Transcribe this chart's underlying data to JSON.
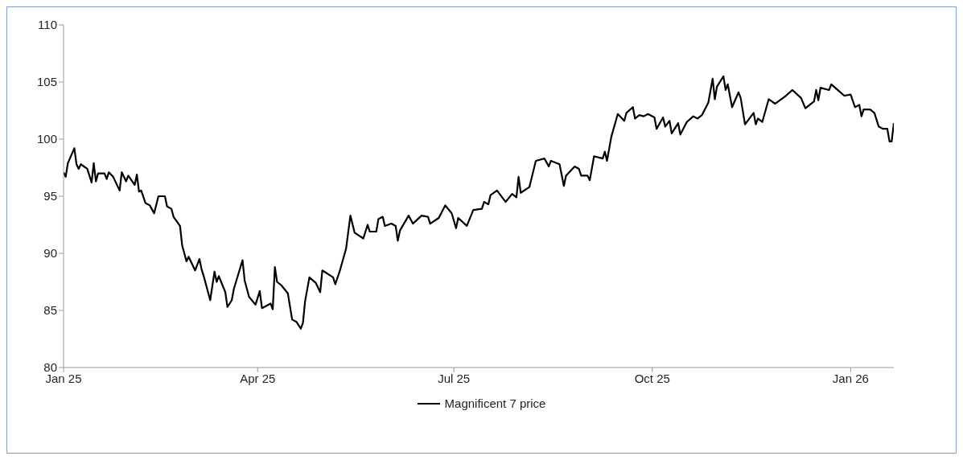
{
  "chart_data": {
    "type": "line",
    "x": [
      "2025-01-01",
      "2025-01-02",
      "2025-01-03",
      "2025-01-06",
      "2025-01-07",
      "2025-01-08",
      "2025-01-09",
      "2025-01-12",
      "2025-01-14",
      "2025-01-15",
      "2025-01-16",
      "2025-01-17",
      "2025-01-20",
      "2025-01-21",
      "2025-01-22",
      "2025-01-24",
      "2025-01-27",
      "2025-01-28",
      "2025-01-30",
      "2025-01-31",
      "2025-02-03",
      "2025-02-04",
      "2025-02-05",
      "2025-02-06",
      "2025-02-08",
      "2025-02-10",
      "2025-02-12",
      "2025-02-14",
      "2025-02-17",
      "2025-02-18",
      "2025-02-20",
      "2025-02-21",
      "2025-02-24",
      "2025-02-25",
      "2025-02-27",
      "2025-02-28",
      "2025-03-03",
      "2025-03-05",
      "2025-03-06",
      "2025-03-07",
      "2025-03-10",
      "2025-03-12",
      "2025-03-13",
      "2025-03-14",
      "2025-03-17",
      "2025-03-18",
      "2025-03-20",
      "2025-03-21",
      "2025-03-25",
      "2025-03-26",
      "2025-03-28",
      "2025-03-31",
      "2025-04-02",
      "2025-04-03",
      "2025-04-07",
      "2025-04-08",
      "2025-04-09",
      "2025-04-10",
      "2025-04-12",
      "2025-04-15",
      "2025-04-17",
      "2025-04-19",
      "2025-04-21",
      "2025-04-22",
      "2025-04-23",
      "2025-04-25",
      "2025-04-28",
      "2025-04-30",
      "2025-05-01",
      "2025-05-06",
      "2025-05-07",
      "2025-05-09",
      "2025-05-12",
      "2025-05-14",
      "2025-05-16",
      "2025-05-20",
      "2025-05-22",
      "2025-05-23",
      "2025-05-26",
      "2025-05-27",
      "2025-05-29",
      "2025-05-30",
      "2025-06-02",
      "2025-06-04",
      "2025-06-05",
      "2025-06-06",
      "2025-06-10",
      "2025-06-12",
      "2025-06-16",
      "2025-06-19",
      "2025-06-20",
      "2025-06-24",
      "2025-06-27",
      "2025-06-30",
      "2025-07-02",
      "2025-07-03",
      "2025-07-07",
      "2025-07-10",
      "2025-07-14",
      "2025-07-15",
      "2025-07-17",
      "2025-07-18",
      "2025-07-21",
      "2025-07-25",
      "2025-07-28",
      "2025-07-30",
      "2025-07-31",
      "2025-08-01",
      "2025-08-05",
      "2025-08-08",
      "2025-08-12",
      "2025-08-14",
      "2025-08-15",
      "2025-08-19",
      "2025-08-21",
      "2025-08-22",
      "2025-08-26",
      "2025-08-28",
      "2025-08-29",
      "2025-09-01",
      "2025-09-02",
      "2025-09-04",
      "2025-09-08",
      "2025-09-09",
      "2025-09-10",
      "2025-09-12",
      "2025-09-15",
      "2025-09-18",
      "2025-09-19",
      "2025-09-22",
      "2025-09-23",
      "2025-09-25",
      "2025-09-27",
      "2025-09-29",
      "2025-10-02",
      "2025-10-03",
      "2025-10-06",
      "2025-10-07",
      "2025-10-09",
      "2025-10-10",
      "2025-10-13",
      "2025-10-14",
      "2025-10-17",
      "2025-10-20",
      "2025-10-22",
      "2025-10-24",
      "2025-10-27",
      "2025-10-29",
      "2025-10-30",
      "2025-10-31",
      "2025-11-03",
      "2025-11-04",
      "2025-11-05",
      "2025-11-07",
      "2025-11-10",
      "2025-11-11",
      "2025-11-13",
      "2025-11-17",
      "2025-11-18",
      "2025-11-19",
      "2025-11-21",
      "2025-11-24",
      "2025-11-27",
      "2025-12-02",
      "2025-12-05",
      "2025-12-09",
      "2025-12-11",
      "2025-12-15",
      "2025-12-16",
      "2025-12-17",
      "2025-12-18",
      "2025-12-22",
      "2025-12-23",
      "2025-12-26",
      "2025-12-29",
      "2026-01-01",
      "2026-01-03",
      "2026-01-05",
      "2026-01-06",
      "2026-01-07",
      "2026-01-10",
      "2026-01-12",
      "2026-01-14",
      "2026-01-16",
      "2026-01-18",
      "2026-01-19",
      "2026-01-20",
      "2026-01-21"
    ],
    "series": [
      {
        "name": "Magnificent 7 price",
        "color": "#000000",
        "values": [
          97.1,
          96.7,
          97.9,
          99.2,
          97.8,
          97.4,
          97.8,
          97.4,
          96.2,
          97.9,
          96.3,
          97.0,
          97.0,
          96.5,
          97.1,
          96.7,
          95.5,
          97.1,
          96.3,
          96.8,
          96.0,
          96.9,
          95.4,
          95.5,
          94.4,
          94.2,
          93.5,
          95.0,
          95.0,
          94.1,
          93.9,
          93.2,
          92.4,
          90.7,
          89.3,
          89.7,
          88.5,
          89.5,
          88.6,
          88.0,
          85.9,
          88.4,
          87.5,
          88.0,
          86.6,
          85.3,
          85.9,
          86.9,
          89.4,
          87.6,
          86.2,
          85.5,
          86.7,
          85.2,
          85.6,
          85.1,
          88.8,
          87.5,
          87.2,
          86.5,
          84.2,
          84.0,
          83.4,
          83.9,
          85.8,
          87.9,
          87.4,
          86.6,
          88.5,
          87.9,
          87.3,
          88.4,
          90.4,
          93.3,
          91.8,
          91.3,
          92.5,
          91.9,
          91.9,
          93.0,
          93.2,
          92.4,
          92.6,
          92.4,
          91.1,
          92.0,
          93.3,
          92.6,
          93.3,
          93.2,
          92.6,
          93.1,
          94.2,
          93.5,
          92.2,
          93.1,
          92.4,
          93.8,
          93.9,
          94.5,
          94.3,
          95.1,
          95.5,
          94.5,
          95.2,
          94.9,
          96.7,
          95.3,
          95.8,
          98.1,
          98.3,
          97.6,
          98.1,
          97.8,
          95.9,
          96.8,
          97.6,
          97.4,
          96.8,
          96.8,
          96.4,
          98.5,
          98.3,
          98.9,
          98.1,
          100.2,
          102.2,
          101.6,
          102.3,
          102.8,
          101.8,
          102.1,
          102.0,
          102.2,
          101.9,
          100.9,
          101.9,
          101.1,
          101.6,
          100.5,
          101.4,
          100.4,
          101.5,
          102.0,
          101.8,
          102.1,
          103.2,
          105.3,
          103.5,
          104.6,
          105.5,
          104.3,
          104.8,
          102.8,
          104.1,
          103.6,
          101.3,
          102.3,
          101.3,
          101.8,
          101.5,
          103.5,
          103.1,
          103.8,
          104.3,
          103.6,
          102.7,
          103.3,
          104.3,
          103.4,
          104.5,
          104.3,
          104.8,
          104.3,
          103.8,
          103.9,
          102.8,
          103.0,
          102.0,
          102.6,
          102.6,
          102.3,
          101.1,
          100.9,
          100.9,
          99.8,
          99.8,
          101.4
        ]
      }
    ],
    "xlim": [
      "2025-01-01",
      "2026-01-21"
    ],
    "xticks": [
      {
        "value": "2025-01-01",
        "label": "Jan 25"
      },
      {
        "value": "2025-04-01",
        "label": "Apr 25"
      },
      {
        "value": "2025-07-01",
        "label": "Jul 25"
      },
      {
        "value": "2025-10-01",
        "label": "Oct 25"
      },
      {
        "value": "2026-01-01",
        "label": "Jan 26"
      }
    ],
    "ylim": [
      80,
      110
    ],
    "yticks": [
      80,
      85,
      90,
      95,
      100,
      105,
      110
    ],
    "marker": "none",
    "legend": "bottom"
  }
}
